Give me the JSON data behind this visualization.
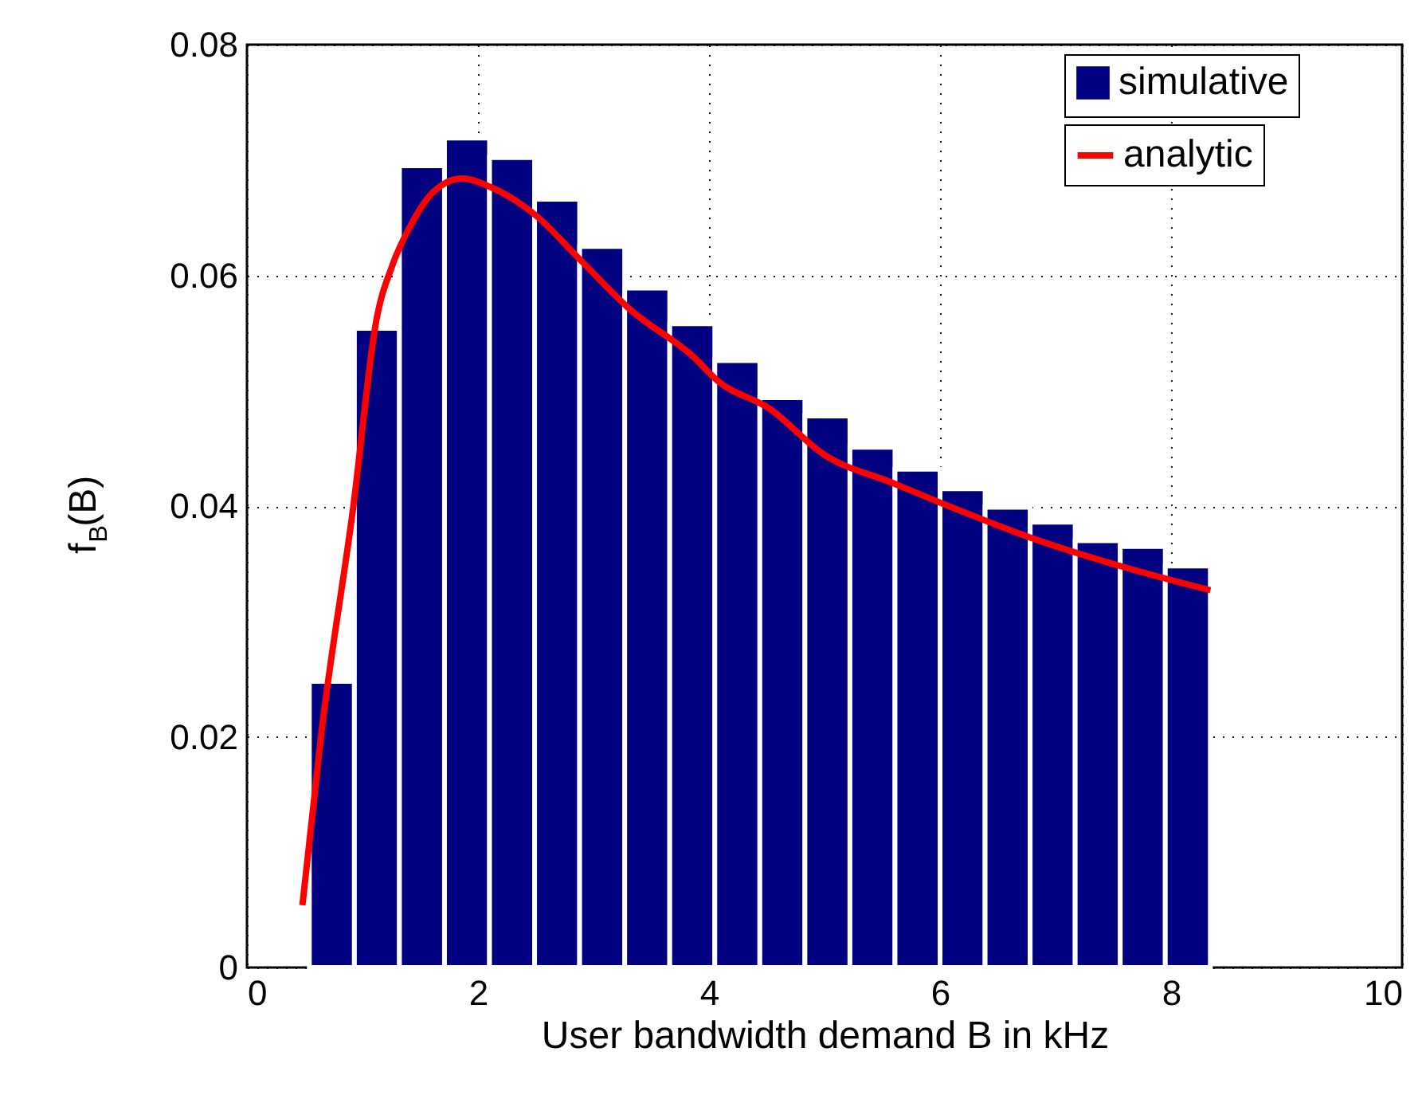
{
  "chart_data": {
    "type": "histogram",
    "xlabel": "User bandwidth demand B in kHz",
    "ylabel": "f$_{B}$(B)",
    "bins": [
      0.54,
      0.93,
      1.32,
      1.71,
      2.1,
      2.49,
      2.88,
      3.27,
      3.66,
      4.05,
      4.44,
      4.83,
      5.22,
      5.61,
      6.0,
      6.39,
      6.78,
      7.17,
      7.56,
      7.95,
      8.34
    ],
    "series": [
      {
        "name": "simulative",
        "color": "#000080",
        "values": [
          0.0248,
          0.0554,
          0.0695,
          0.0719,
          0.0702,
          0.0666,
          0.0625,
          0.0589,
          0.0558,
          0.0526,
          0.0494,
          0.0478,
          0.0451,
          0.0432,
          0.0415,
          0.0399,
          0.0386,
          0.037,
          0.0365,
          0.0348
        ]
      },
      {
        "name": "analytic",
        "type": "line",
        "color": "#ff0000",
        "x": [
          0.48,
          0.645,
          0.92,
          1.12,
          1.26,
          1.41,
          1.6,
          1.86,
          2.12,
          2.5,
          2.88,
          3.31,
          3.88,
          4.07,
          4.53,
          4.99,
          5.59,
          6.0,
          6.83,
          7.56,
          8.34
        ],
        "values": [
          0.0054,
          0.0204,
          0.0399,
          0.0561,
          0.0609,
          0.0642,
          0.0671,
          0.0684,
          0.0676,
          0.0652,
          0.0614,
          0.0571,
          0.0528,
          0.0509,
          0.0484,
          0.0445,
          0.042,
          0.0403,
          0.0371,
          0.0348,
          0.0327
        ]
      }
    ],
    "xlim": [
      0,
      10
    ],
    "xticks": [
      0,
      2,
      4,
      6,
      8,
      10
    ],
    "ylim": [
      0,
      0.08
    ],
    "yticks": [
      0,
      0.02,
      0.04,
      0.06,
      0.08
    ],
    "grid": true,
    "legend": "top right",
    "line_style": "solid"
  }
}
